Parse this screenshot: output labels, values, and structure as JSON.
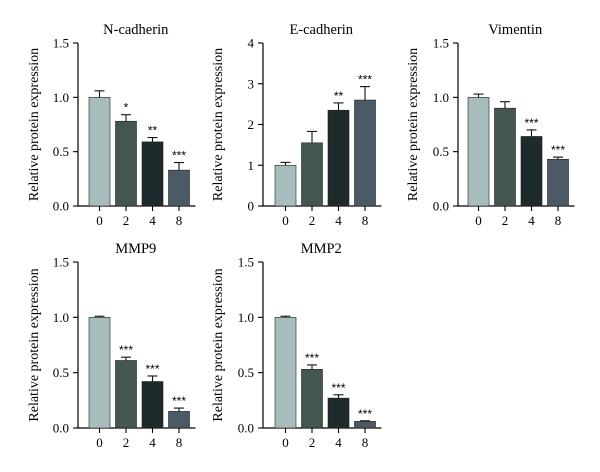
{
  "colors": [
    "#a7bcbc",
    "#435652",
    "#1e2b2c",
    "#4c5a66"
  ],
  "chart_data": [
    {
      "type": "bar",
      "title": "N-cadherin",
      "ylabel": "Relative protein expression",
      "categories": [
        "0",
        "2",
        "4",
        "8"
      ],
      "values": [
        1.0,
        0.78,
        0.59,
        0.33
      ],
      "errors": [
        0.06,
        0.06,
        0.04,
        0.07
      ],
      "significance": [
        "",
        "*",
        "**",
        "***"
      ],
      "ylim": [
        0,
        1.5
      ],
      "yticks": [
        "0.0",
        "0.5",
        "1.0",
        "1.5"
      ]
    },
    {
      "type": "bar",
      "title": "E-cadherin",
      "ylabel": "Relative protein expression",
      "categories": [
        "0",
        "2",
        "4",
        "8"
      ],
      "values": [
        1.0,
        1.55,
        2.35,
        2.6
      ],
      "errors": [
        0.07,
        0.28,
        0.18,
        0.33
      ],
      "significance": [
        "",
        "",
        "**",
        "***"
      ],
      "ylim": [
        0,
        4
      ],
      "yticks": [
        "0",
        "1",
        "2",
        "3",
        "4"
      ]
    },
    {
      "type": "bar",
      "title": "Vimentin",
      "ylabel": "Relative protein expression",
      "categories": [
        "0",
        "2",
        "4",
        "8"
      ],
      "values": [
        1.0,
        0.9,
        0.64,
        0.43
      ],
      "errors": [
        0.03,
        0.06,
        0.06,
        0.02
      ],
      "significance": [
        "",
        "",
        "***",
        "***"
      ],
      "ylim": [
        0,
        1.5
      ],
      "yticks": [
        "0.0",
        "0.5",
        "1.0",
        "1.5"
      ]
    },
    {
      "type": "bar",
      "title": "MMP9",
      "ylabel": "Relative protein expression",
      "categories": [
        "0",
        "2",
        "4",
        "8"
      ],
      "values": [
        1.0,
        0.61,
        0.42,
        0.15
      ],
      "errors": [
        0.01,
        0.03,
        0.05,
        0.03
      ],
      "significance": [
        "",
        "***",
        "***",
        "***"
      ],
      "ylim": [
        0,
        1.5
      ],
      "yticks": [
        "0.0",
        "0.5",
        "1.0",
        "1.5"
      ]
    },
    {
      "type": "bar",
      "title": "MMP2",
      "ylabel": "Relative protein expression",
      "categories": [
        "0",
        "2",
        "4",
        "8"
      ],
      "values": [
        1.0,
        0.53,
        0.27,
        0.06
      ],
      "errors": [
        0.01,
        0.04,
        0.03,
        0.005
      ],
      "significance": [
        "",
        "***",
        "***",
        "***"
      ],
      "ylim": [
        0,
        1.5
      ],
      "yticks": [
        "0.0",
        "0.5",
        "1.0",
        "1.5"
      ]
    }
  ]
}
